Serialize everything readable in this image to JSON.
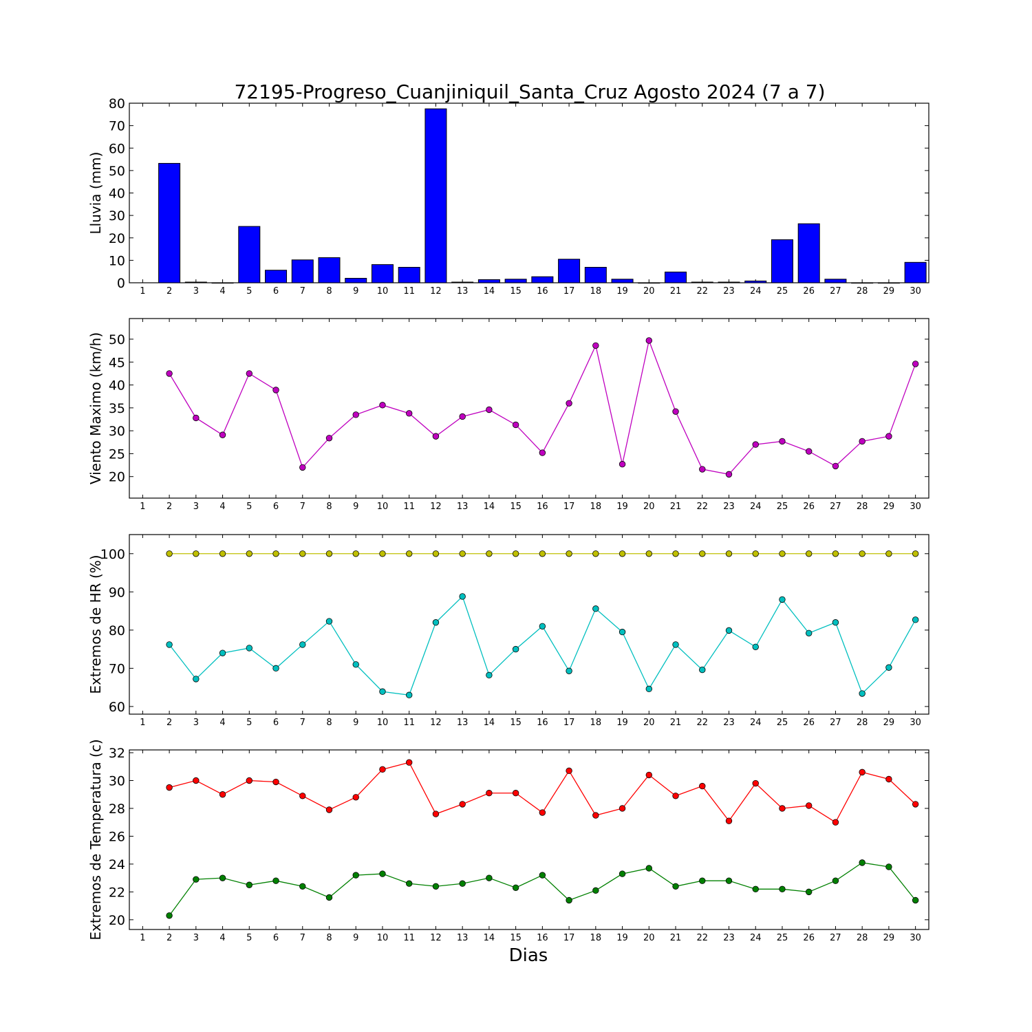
{
  "figure": {
    "title": "72195-Progreso_Cuanjiniquil_Santa_Cruz Agosto 2024  (7 a 7)",
    "xlabel": "Dias"
  },
  "chart_data": [
    {
      "type": "bar",
      "ylabel": "Lluvia (mm)",
      "xlim": [
        0.5,
        30.5
      ],
      "ylim": [
        0,
        80
      ],
      "yticks": [
        0,
        10,
        20,
        30,
        40,
        50,
        60,
        70,
        80
      ],
      "xticks": [
        1,
        2,
        3,
        4,
        5,
        6,
        7,
        8,
        9,
        10,
        11,
        12,
        13,
        14,
        15,
        16,
        17,
        18,
        19,
        20,
        21,
        22,
        23,
        24,
        25,
        26,
        27,
        28,
        29,
        30
      ],
      "grid": false,
      "series": [
        {
          "color": "#0000ff",
          "x": [
            2,
            3,
            4,
            5,
            6,
            7,
            8,
            9,
            10,
            11,
            12,
            13,
            14,
            15,
            16,
            17,
            18,
            19,
            20,
            21,
            22,
            23,
            24,
            25,
            26,
            27,
            28,
            29,
            30
          ],
          "values": [
            53.2,
            0.3,
            0,
            25.1,
            5.6,
            10.2,
            11.2,
            2.0,
            8.1,
            6.9,
            77.5,
            0.3,
            1.4,
            1.6,
            2.7,
            10.5,
            6.9,
            1.6,
            0,
            4.8,
            0.3,
            0.3,
            0.8,
            19.2,
            26.3,
            1.6,
            0,
            0,
            9.1
          ]
        }
      ]
    },
    {
      "type": "line",
      "ylabel": "Viento Maximo (km/h)",
      "xlim": [
        0.5,
        30.5
      ],
      "ylim": [
        15.3,
        54.5
      ],
      "yticks": [
        20,
        25,
        30,
        35,
        40,
        45,
        50
      ],
      "xticks": [
        1,
        2,
        3,
        4,
        5,
        6,
        7,
        8,
        9,
        10,
        11,
        12,
        13,
        14,
        15,
        16,
        17,
        18,
        19,
        20,
        21,
        22,
        23,
        24,
        25,
        26,
        27,
        28,
        29,
        30
      ],
      "grid": false,
      "series": [
        {
          "color": "#bf00bf",
          "x": [
            2,
            3,
            4,
            5,
            6,
            7,
            8,
            9,
            10,
            11,
            12,
            13,
            14,
            15,
            16,
            17,
            18,
            19,
            20,
            21,
            22,
            23,
            24,
            25,
            26,
            27,
            28,
            29,
            30
          ],
          "values": [
            42.5,
            32.8,
            29.1,
            42.5,
            38.9,
            22.0,
            28.4,
            33.5,
            35.6,
            33.8,
            28.8,
            33.1,
            34.6,
            31.3,
            25.2,
            36.0,
            48.6,
            22.7,
            49.7,
            34.2,
            21.6,
            20.5,
            27.0,
            27.7,
            25.5,
            22.3,
            27.7,
            28.8,
            44.6
          ]
        }
      ]
    },
    {
      "type": "line",
      "ylabel": "Extremos de HR (%)",
      "xlim": [
        0.5,
        30.5
      ],
      "ylim": [
        58,
        105
      ],
      "yticks": [
        60,
        70,
        80,
        90,
        100
      ],
      "xticks": [
        1,
        2,
        3,
        4,
        5,
        6,
        7,
        8,
        9,
        10,
        11,
        12,
        13,
        14,
        15,
        16,
        17,
        18,
        19,
        20,
        21,
        22,
        23,
        24,
        25,
        26,
        27,
        28,
        29,
        30
      ],
      "grid": false,
      "series": [
        {
          "color": "#bfbf00",
          "x": [
            2,
            3,
            4,
            5,
            6,
            7,
            8,
            9,
            10,
            11,
            12,
            13,
            14,
            15,
            16,
            17,
            18,
            19,
            20,
            21,
            22,
            23,
            24,
            25,
            26,
            27,
            28,
            29,
            30
          ],
          "values": [
            100,
            100,
            100,
            100,
            100,
            100,
            100,
            100,
            100,
            100,
            100,
            100,
            100,
            100,
            100,
            100,
            100,
            100,
            100,
            100,
            100,
            100,
            100,
            100,
            100,
            100,
            100,
            100,
            100
          ]
        },
        {
          "color": "#00bfbf",
          "x": [
            2,
            3,
            4,
            5,
            6,
            7,
            8,
            9,
            10,
            11,
            12,
            13,
            14,
            15,
            16,
            17,
            18,
            19,
            20,
            21,
            22,
            23,
            24,
            25,
            26,
            27,
            28,
            29,
            30
          ],
          "values": [
            76.2,
            67.2,
            74.0,
            75.3,
            70.0,
            76.2,
            82.3,
            71.0,
            63.9,
            63.0,
            82.0,
            88.8,
            68.2,
            75.0,
            81.0,
            69.3,
            85.6,
            79.5,
            64.6,
            76.2,
            69.6,
            79.9,
            75.6,
            88.0,
            79.2,
            82.0,
            63.4,
            70.2,
            82.7
          ]
        }
      ]
    },
    {
      "type": "line",
      "ylabel": "Extremos de Temperatura (c)",
      "xlim": [
        0.5,
        30.5
      ],
      "ylim": [
        19.3,
        32.2
      ],
      "yticks": [
        20,
        22,
        24,
        26,
        28,
        30,
        32
      ],
      "xticks": [
        1,
        2,
        3,
        4,
        5,
        6,
        7,
        8,
        9,
        10,
        11,
        12,
        13,
        14,
        15,
        16,
        17,
        18,
        19,
        20,
        21,
        22,
        23,
        24,
        25,
        26,
        27,
        28,
        29,
        30
      ],
      "grid": false,
      "series": [
        {
          "color": "#ff0000",
          "x": [
            2,
            3,
            4,
            5,
            6,
            7,
            8,
            9,
            10,
            11,
            12,
            13,
            14,
            15,
            16,
            17,
            18,
            19,
            20,
            21,
            22,
            23,
            24,
            25,
            26,
            27,
            28,
            29,
            30
          ],
          "values": [
            29.5,
            30.0,
            29.0,
            30.0,
            29.9,
            28.9,
            27.9,
            28.8,
            30.8,
            31.3,
            27.6,
            28.3,
            29.1,
            29.1,
            27.7,
            30.7,
            27.5,
            28.0,
            30.4,
            28.9,
            29.6,
            27.1,
            29.8,
            28.0,
            28.2,
            27.0,
            30.6,
            30.1,
            28.3
          ]
        },
        {
          "color": "#008000",
          "x": [
            2,
            3,
            4,
            5,
            6,
            7,
            8,
            9,
            10,
            11,
            12,
            13,
            14,
            15,
            16,
            17,
            18,
            19,
            20,
            21,
            22,
            23,
            24,
            25,
            26,
            27,
            28,
            29,
            30
          ],
          "values": [
            20.3,
            22.9,
            23.0,
            22.5,
            22.8,
            22.4,
            21.6,
            23.2,
            23.3,
            22.6,
            22.4,
            22.6,
            23.0,
            22.3,
            23.2,
            21.4,
            22.1,
            23.3,
            23.7,
            22.4,
            22.8,
            22.8,
            22.2,
            22.2,
            22.0,
            22.8,
            24.1,
            23.8,
            21.4
          ]
        }
      ]
    }
  ]
}
